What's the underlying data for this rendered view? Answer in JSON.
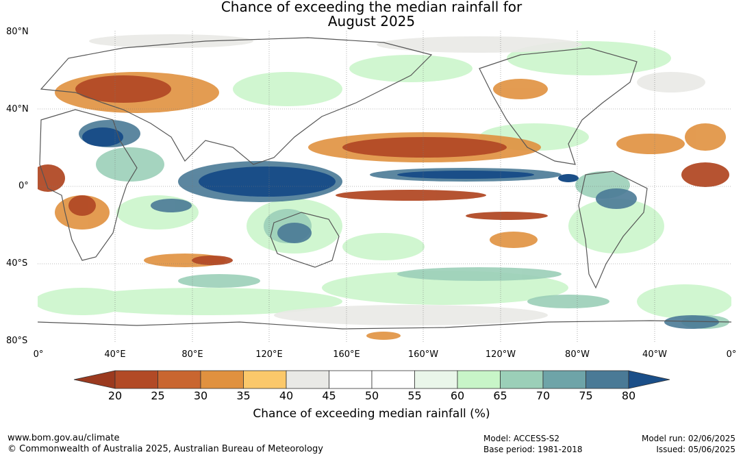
{
  "title_line1": "Chance of exceeding the median rainfall for",
  "title_line2": "August 2025",
  "lat_labels": [
    "80°N",
    "40°N",
    "0°",
    "40°S",
    "80°S"
  ],
  "lon_labels": [
    "0°",
    "40°E",
    "80°E",
    "120°E",
    "160°E",
    "160°W",
    "120°W",
    "80°W",
    "40°W",
    "0°"
  ],
  "colorbar": {
    "ticks": [
      "20",
      "25",
      "30",
      "35",
      "40",
      "45",
      "50",
      "55",
      "60",
      "65",
      "70",
      "75",
      "80"
    ],
    "colors": [
      "#9b3a1f",
      "#b24a26",
      "#c96630",
      "#e0913f",
      "#fbc86a",
      "#e9e9e6",
      "#ffffff",
      "#ffffff",
      "#eaf6ea",
      "#c8f5c8",
      "#9bcfb8",
      "#6ea4a8",
      "#4a7a96",
      "#1a4e88"
    ],
    "label": "Chance of exceeding median rainfall (%)"
  },
  "footer": {
    "website": "www.bom.gov.au/climate",
    "copyright": "© Commonwealth of Australia 2025, Australian Bureau of Meteorology",
    "model": "Model: ACCESS-S2",
    "base_period": "Base period: 1981-2018",
    "model_run": "Model run: 02/06/2025",
    "issued": "Issued: 05/06/2025"
  }
}
